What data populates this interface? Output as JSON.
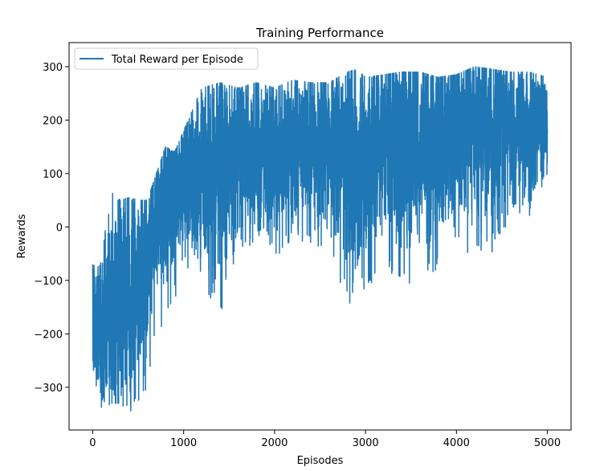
{
  "chart_data": {
    "type": "line",
    "title": "Training Performance",
    "xlabel": "Episodes",
    "ylabel": "Rewards",
    "xlim": [
      -260,
      5260
    ],
    "ylim": [
      -380,
      345
    ],
    "xticks": [
      0,
      1000,
      2000,
      3000,
      4000,
      5000
    ],
    "xtick_labels": [
      "0",
      "1000",
      "2000",
      "3000",
      "4000",
      "5000"
    ],
    "yticks": [
      -300,
      -200,
      -100,
      0,
      100,
      200,
      300
    ],
    "ytick_labels": [
      "−300",
      "−200",
      "−100",
      "0",
      "100",
      "200",
      "300"
    ],
    "grid": false,
    "legend": "top-left",
    "series": [
      {
        "name": "Total Reward per Episode",
        "color": "#1f77b4",
        "x_start": 0,
        "x_end": 5000,
        "trend": {
          "x": [
            0,
            100,
            200,
            300,
            400,
            500,
            600,
            700,
            800,
            900,
            1000,
            1200,
            1400,
            1600,
            1800,
            2000,
            2200,
            2400,
            2600,
            2800,
            2900,
            3000,
            3200,
            3400,
            3600,
            3800,
            4000,
            4200,
            4400,
            4600,
            4800,
            5000
          ],
          "upper": [
            -70,
            -60,
            80,
            50,
            55,
            50,
            50,
            100,
            150,
            140,
            180,
            260,
            270,
            260,
            270,
            260,
            275,
            270,
            270,
            290,
            295,
            280,
            285,
            290,
            290,
            280,
            285,
            300,
            295,
            290,
            290,
            280
          ],
          "lower": [
            -330,
            -345,
            -330,
            -330,
            -345,
            -340,
            -300,
            -200,
            -180,
            -140,
            -120,
            -80,
            -220,
            -60,
            -20,
            -60,
            -20,
            -40,
            -30,
            -150,
            -160,
            -140,
            -40,
            -150,
            -80,
            -85,
            -60,
            -40,
            -50,
            10,
            20,
            100
          ],
          "mean": [
            -180,
            -180,
            -150,
            -140,
            -130,
            -120,
            -60,
            20,
            50,
            70,
            90,
            110,
            120,
            130,
            140,
            140,
            145,
            150,
            150,
            120,
            100,
            130,
            160,
            165,
            165,
            165,
            170,
            175,
            178,
            180,
            182,
            185
          ]
        }
      }
    ]
  }
}
